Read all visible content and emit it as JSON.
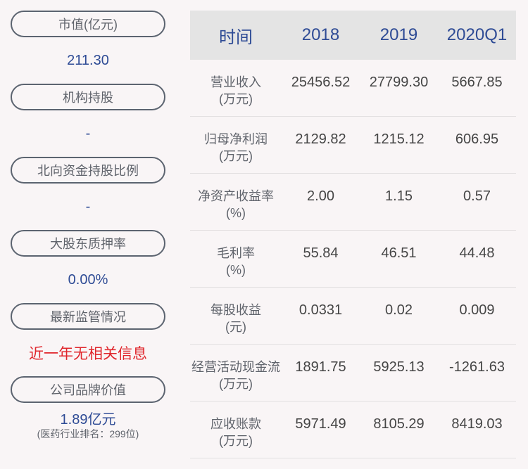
{
  "left_panel": {
    "items": [
      {
        "label": "市值(亿元)",
        "value": "211.30"
      },
      {
        "label": "机构持股",
        "value": "-"
      },
      {
        "label": "北向资金持股比例",
        "value": "-"
      },
      {
        "label": "大股东质押率",
        "value": "0.00%"
      },
      {
        "label": "最新监管情况",
        "value": "近一年无相关信息"
      },
      {
        "label": "公司品牌价值",
        "value": "1.89亿元",
        "sub": "(医药行业排名：299位)"
      }
    ]
  },
  "table": {
    "headers": [
      "时间",
      "2018",
      "2019",
      "2020Q1"
    ],
    "rows": [
      {
        "label": "营业收入",
        "unit": "(万元)",
        "values": [
          "25456.52",
          "27799.30",
          "5667.85"
        ]
      },
      {
        "label": "归母净利润",
        "unit": "(万元)",
        "values": [
          "2129.82",
          "1215.12",
          "606.95"
        ]
      },
      {
        "label": "净资产收益率",
        "unit": "(%)",
        "values": [
          "2.00",
          "1.15",
          "0.57"
        ]
      },
      {
        "label": "毛利率",
        "unit": "(%)",
        "values": [
          "55.84",
          "46.51",
          "44.48"
        ]
      },
      {
        "label": "每股收益",
        "unit": "(元)",
        "values": [
          "0.0331",
          "0.02",
          "0.009"
        ]
      },
      {
        "label": "经营活动现金流",
        "unit": "(万元)",
        "values": [
          "1891.75",
          "5925.13",
          "-1261.63"
        ]
      },
      {
        "label": "应收账款",
        "unit": "(万元)",
        "values": [
          "5971.49",
          "8105.29",
          "8419.03"
        ]
      }
    ]
  },
  "colors": {
    "accent_blue": "#2e4b95",
    "alert_red": "#e0262c",
    "header_bg": "#e4e4e4",
    "page_bg": "#f9f5f6"
  }
}
